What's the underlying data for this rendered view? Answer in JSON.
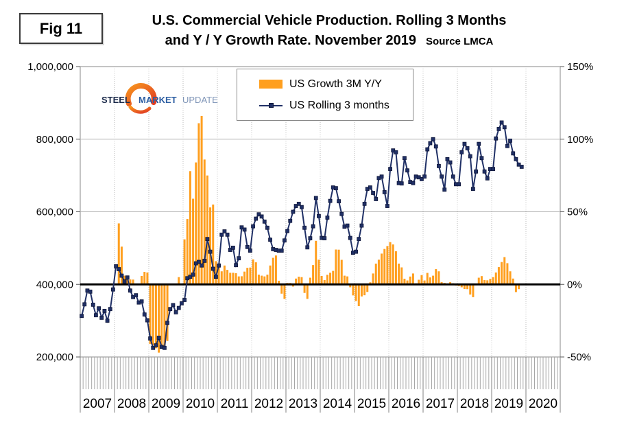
{
  "figure_label": "Fig 11",
  "title_line1": "U.S. Commercial Vehicle Production. Rolling 3 Months",
  "title_line2": "and Y / Y Growth Rate. November 2019",
  "source": "Source LMCA",
  "logo": {
    "word1": "STEEL",
    "word2": "MARKET",
    "word3": "UPDATE"
  },
  "legend": {
    "bar_label": "US Growth 3M Y/Y",
    "line_label": "US Rolling 3 months"
  },
  "colors": {
    "bar": "#FF9F1E",
    "line": "#203066",
    "marker_edge": "#10173A",
    "zero_line": "#000000",
    "gridline": "#b3b3b3",
    "axis": "#888888",
    "tick_comb": "#a6a6a6",
    "logo_steel": "#1B2A4A",
    "logo_market": "#2E5FA3",
    "logo_update": "#8096B8",
    "logo_swoosh_start": "#F7941E",
    "logo_swoosh_end": "#E03C24"
  },
  "chart_data": {
    "type": "bar+line combo",
    "title": "U.S. Commercial Vehicle Production. Rolling 3 Months and Y / Y Growth Rate. November 2019",
    "x_start": "2007-01",
    "x_freq": "monthly",
    "x_months_span": 168,
    "x_year_labels": [
      "2007",
      "2008",
      "2009",
      "2010",
      "2011",
      "2012",
      "2013",
      "2014",
      "2015",
      "2016",
      "2017",
      "2018",
      "2019",
      "2020"
    ],
    "left_axis": {
      "range": [
        200000,
        1000000
      ],
      "tick_values": [
        1000000,
        800000,
        600000,
        400000,
        200000
      ],
      "tick_labels": [
        "1,000,000",
        "800,000",
        "600,000",
        "400,000",
        "200,000"
      ]
    },
    "right_axis": {
      "range": [
        -50,
        150
      ],
      "tick_values": [
        150,
        100,
        50,
        0,
        -50
      ],
      "tick_labels": [
        "150%",
        "100%",
        "50%",
        "0%",
        "-50%"
      ]
    },
    "grid": {
      "horizontal": "solid",
      "vertical_year_separators": "dotted",
      "zero_line_bold": true
    },
    "legend_position": "top-center",
    "series": [
      {
        "name": "US Growth 3M Y/Y",
        "type": "bar",
        "axis": "right",
        "unit": "%",
        "values": [
          null,
          null,
          null,
          null,
          null,
          null,
          null,
          null,
          null,
          null,
          null,
          null,
          null,
          42,
          26,
          6,
          3.5,
          3.4,
          3.3,
          null,
          null,
          5.8,
          8.6,
          8.2,
          -41,
          -42,
          -44,
          -47,
          -42,
          -45,
          -39,
          null,
          null,
          null,
          5,
          null,
          31,
          45,
          78,
          59,
          84,
          111,
          116,
          86,
          75,
          53,
          55,
          16,
          12,
          9,
          13,
          10,
          8,
          8,
          7.7,
          5.5,
          5.6,
          8.8,
          11.4,
          11.6,
          17.2,
          15.2,
          6.7,
          6,
          5.5,
          6.7,
          13,
          18.3,
          19.9,
          2.5,
          -6.4,
          -10,
          1,
          1,
          -1.5,
          4,
          5.3,
          5,
          -5.9,
          -10,
          4.6,
          13.3,
          30,
          17,
          5.8,
          3,
          6.6,
          8,
          9.3,
          24,
          23.9,
          16.9,
          6,
          5.5,
          -2,
          -7.6,
          -11.5,
          -15,
          -8.3,
          -7.5,
          -5.2,
          1.4,
          7.5,
          14.3,
          17,
          21.2,
          24.4,
          26.4,
          29.1,
          27.5,
          22.8,
          14.3,
          11.7,
          3.9,
          2.7,
          5.4,
          7.5,
          0.7,
          3.2,
          6.4,
          2.7,
          7.9,
          4.8,
          6,
          10.5,
          9,
          1.5,
          1,
          0.5,
          1.5,
          0.8,
          -0.8,
          -1.2,
          -2,
          -3.2,
          -3.3,
          -7,
          -8.8,
          null,
          4.6,
          5.7,
          3,
          2.8,
          3.8,
          5,
          8.2,
          11.9,
          15.4,
          18.8,
          14.6,
          9,
          4,
          -5.3,
          -3.3,
          null
        ]
      },
      {
        "name": "US Rolling 3 months",
        "type": "line",
        "axis": "left",
        "unit": "vehicles",
        "values": [
          313000,
          345000,
          383000,
          380000,
          344000,
          315000,
          334000,
          308000,
          327000,
          300000,
          332000,
          386000,
          450000,
          442000,
          424000,
          408000,
          419000,
          383000,
          365000,
          370000,
          350000,
          353000,
          317000,
          301000,
          251000,
          225000,
          232000,
          253000,
          228000,
          225000,
          294000,
          332000,
          343000,
          323000,
          335000,
          348000,
          357000,
          417000,
          421000,
          427000,
          458000,
          462000,
          452000,
          465000,
          525000,
          490000,
          443000,
          421000,
          452000,
          537000,
          546000,
          537000,
          495000,
          501000,
          453000,
          472000,
          557000,
          551000,
          503000,
          493000,
          560000,
          581000,
          593000,
          587000,
          573000,
          556000,
          523000,
          497000,
          495000,
          493000,
          493000,
          521000,
          547000,
          575000,
          600000,
          616000,
          622000,
          613000,
          556000,
          502000,
          527000,
          560000,
          638000,
          588000,
          528000,
          527000,
          584000,
          630000,
          667000,
          665000,
          629000,
          594000,
          559000,
          562000,
          528000,
          487000,
          490000,
          525000,
          562000,
          622000,
          663000,
          667000,
          652000,
          635000,
          693000,
          697000,
          654000,
          616000,
          718000,
          769000,
          764000,
          679000,
          678000,
          748000,
          714000,
          682000,
          679000,
          697000,
          695000,
          690000,
          697000,
          772000,
          789000,
          800000,
          780000,
          726000,
          697000,
          661000,
          745000,
          736000,
          697000,
          676000,
          676000,
          764000,
          787000,
          775000,
          753000,
          663000,
          711000,
          787000,
          748000,
          711000,
          692000,
          718000,
          718000,
          802000,
          828000,
          846000,
          833000,
          781000,
          796000,
          761000,
          745000,
          730000,
          724000
        ]
      }
    ]
  }
}
